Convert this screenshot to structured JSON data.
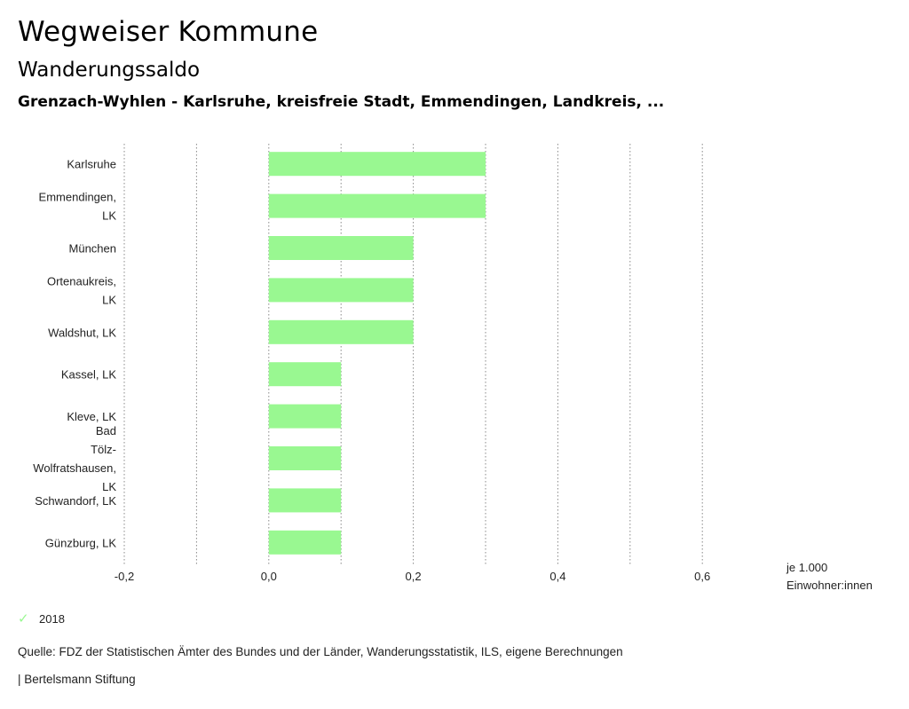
{
  "header": {
    "title": "Wegweiser Kommune",
    "subtitle": "Wanderungssaldo",
    "subsubtitle": "Grenzach-Wyhlen - Karlsruhe, kreisfreie Stadt, Emmendingen, Landkreis, ..."
  },
  "chart_data": {
    "type": "bar",
    "orientation": "horizontal",
    "categories": [
      [
        "Karlsruhe"
      ],
      [
        "Emmendingen,",
        "LK"
      ],
      [
        "München"
      ],
      [
        "Ortenaukreis,",
        "LK"
      ],
      [
        "Waldshut, LK"
      ],
      [
        "Kassel, LK"
      ],
      [
        "Kleve, LK"
      ],
      [
        "Bad",
        "Tölz-",
        "Wolfratshausen,",
        "LK"
      ],
      [
        "Schwandorf, LK"
      ],
      [
        "Günzburg, LK"
      ]
    ],
    "series": [
      {
        "name": "2018",
        "color": "#99f891",
        "values": [
          0.3,
          0.3,
          0.2,
          0.2,
          0.2,
          0.1,
          0.1,
          0.1,
          0.1,
          0.1
        ]
      }
    ],
    "xlim": [
      -0.2,
      0.8
    ],
    "ticks": [
      -0.2,
      0.0,
      0.2,
      0.4,
      0.6
    ],
    "tick_labels": [
      "-0,2",
      "0,0",
      "0,2",
      "0,4",
      "0,6"
    ],
    "gridlines": [
      -0.2,
      -0.1,
      0.0,
      0.1,
      0.2,
      0.3,
      0.4,
      0.5,
      0.6
    ],
    "unit_label": [
      "je 1.000",
      "Einwohner:innen"
    ]
  },
  "legend": {
    "label": "2018",
    "icon": "check-icon"
  },
  "footer": {
    "source": "Quelle: FDZ der Statistischen Ämter des Bundes und der Länder, Wanderungsstatistik, ILS, eigene Berechnungen",
    "credit": "| Bertelsmann Stiftung"
  }
}
